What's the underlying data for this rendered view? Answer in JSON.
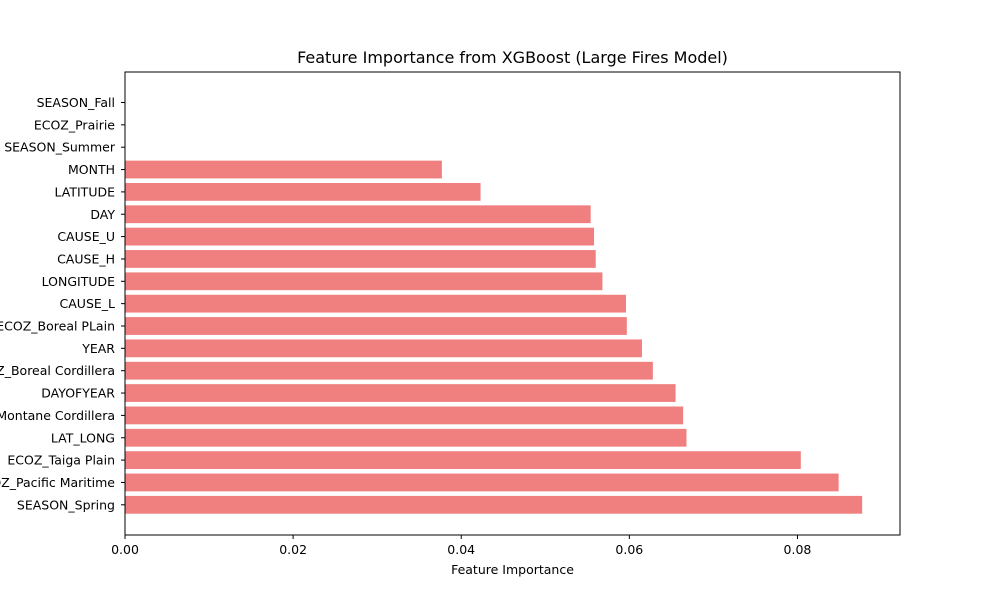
{
  "chart_data": {
    "type": "bar",
    "orientation": "horizontal",
    "title": "Feature Importance from XGBoost (Large Fires Model)",
    "xlabel": "Feature Importance",
    "ylabel": "",
    "xlim": [
      0,
      0.0922
    ],
    "xticks": [
      0.0,
      0.02,
      0.04,
      0.06,
      0.08
    ],
    "xtick_labels": [
      "0.00",
      "0.02",
      "0.04",
      "0.06",
      "0.08"
    ],
    "bar_color": "#f08080",
    "grid": false,
    "categories": [
      "SEASON_Fall",
      "ECOZ_Prairie",
      "SEASON_Summer",
      "MONTH",
      "LATITUDE",
      "DAY",
      "CAUSE_U",
      "CAUSE_H",
      "LONGITUDE",
      "CAUSE_L",
      "ECOZ_Boreal PLain",
      "YEAR",
      "ECOZ_Boreal Cordillera",
      "DAYOFYEAR",
      "ECOZ_Montane Cordillera",
      "LAT_LONG",
      "ECOZ_Taiga Plain",
      "ECOZ_Pacific Maritime",
      "SEASON_Spring"
    ],
    "values": [
      0.0,
      0.0,
      0.0,
      0.0377,
      0.0423,
      0.0554,
      0.0558,
      0.056,
      0.0568,
      0.0596,
      0.0597,
      0.0615,
      0.0628,
      0.0655,
      0.0664,
      0.0668,
      0.0804,
      0.0849,
      0.0877
    ]
  }
}
